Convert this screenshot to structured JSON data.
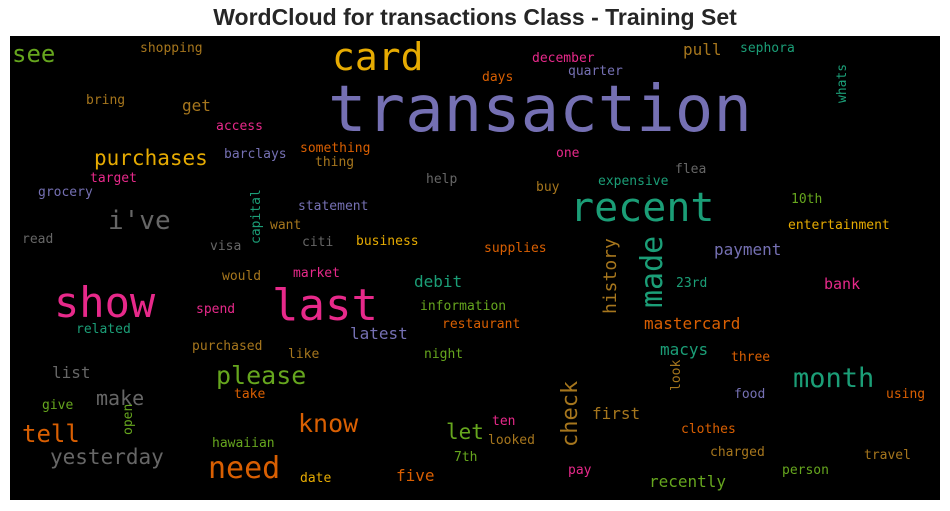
{
  "chart_data": {
    "type": "wordcloud",
    "title": "WordCloud for transactions Class - Training Set",
    "background": "#000000",
    "colormap": "Dark2",
    "words": [
      {
        "text": "transaction",
        "weight": 1.0,
        "color": "#7570b3"
      },
      {
        "text": "card",
        "weight": 0.48,
        "color": "#e6ab02"
      },
      {
        "text": "recent",
        "weight": 0.48,
        "color": "#1b9e77"
      },
      {
        "text": "last",
        "weight": 0.48,
        "color": "#e7298a"
      },
      {
        "text": "show",
        "weight": 0.48,
        "color": "#e7298a"
      },
      {
        "text": "made",
        "weight": 0.4,
        "color": "#1b9e77"
      },
      {
        "text": "i've",
        "weight": 0.3,
        "color": "#666666"
      },
      {
        "text": "month",
        "weight": 0.3,
        "color": "#1b9e77"
      },
      {
        "text": "need",
        "weight": 0.3,
        "color": "#d95f02"
      },
      {
        "text": "please",
        "weight": 0.27,
        "color": "#66a61e"
      },
      {
        "text": "know",
        "weight": 0.27,
        "color": "#d95f02"
      },
      {
        "text": "check",
        "weight": 0.27,
        "color": "#a6761d"
      },
      {
        "text": "see",
        "weight": 0.25,
        "color": "#66a61e"
      },
      {
        "text": "tell",
        "weight": 0.25,
        "color": "#d95f02"
      },
      {
        "text": "purchases",
        "weight": 0.22,
        "color": "#e6ab02"
      },
      {
        "text": "make",
        "weight": 0.22,
        "color": "#666666"
      },
      {
        "text": "yesterday",
        "weight": 0.22,
        "color": "#666666"
      },
      {
        "text": "let",
        "weight": 0.22,
        "color": "#66a61e"
      },
      {
        "text": "history",
        "weight": 0.2,
        "color": "#a6761d"
      },
      {
        "text": "mastercard",
        "weight": 0.16,
        "color": "#d95f02"
      },
      {
        "text": "macys",
        "weight": 0.16,
        "color": "#1b9e77"
      },
      {
        "text": "payment",
        "weight": 0.16,
        "color": "#7570b3"
      },
      {
        "text": "debit",
        "weight": 0.16,
        "color": "#1b9e77"
      },
      {
        "text": "latest",
        "weight": 0.16,
        "color": "#7570b3"
      },
      {
        "text": "recently",
        "weight": 0.16,
        "color": "#66a61e"
      },
      {
        "text": "first",
        "weight": 0.16,
        "color": "#a6761d"
      },
      {
        "text": "five",
        "weight": 0.16,
        "color": "#d95f02"
      },
      {
        "text": "list",
        "weight": 0.16,
        "color": "#666666"
      },
      {
        "text": "get",
        "weight": 0.16,
        "color": "#a6761d"
      },
      {
        "text": "pull",
        "weight": 0.16,
        "color": "#a6761d"
      },
      {
        "text": "bank",
        "weight": 0.15,
        "color": "#e7298a"
      },
      {
        "text": "shopping",
        "weight": 0.13,
        "color": "#a6761d"
      },
      {
        "text": "december",
        "weight": 0.13,
        "color": "#e7298a"
      },
      {
        "text": "quarter",
        "weight": 0.13,
        "color": "#7570b3"
      },
      {
        "text": "sephora",
        "weight": 0.13,
        "color": "#1b9e77"
      },
      {
        "text": "days",
        "weight": 0.13,
        "color": "#d95f02"
      },
      {
        "text": "bring",
        "weight": 0.13,
        "color": "#a6761d"
      },
      {
        "text": "whats",
        "weight": 0.13,
        "color": "#1b9e77"
      },
      {
        "text": "access",
        "weight": 0.13,
        "color": "#e7298a"
      },
      {
        "text": "something",
        "weight": 0.13,
        "color": "#d95f02"
      },
      {
        "text": "thing",
        "weight": 0.13,
        "color": "#a6761d"
      },
      {
        "text": "barclays",
        "weight": 0.13,
        "color": "#7570b3"
      },
      {
        "text": "one",
        "weight": 0.13,
        "color": "#e7298a"
      },
      {
        "text": "flea",
        "weight": 0.13,
        "color": "#666666"
      },
      {
        "text": "target",
        "weight": 0.13,
        "color": "#e7298a"
      },
      {
        "text": "help",
        "weight": 0.13,
        "color": "#666666"
      },
      {
        "text": "expensive",
        "weight": 0.13,
        "color": "#1b9e77"
      },
      {
        "text": "grocery",
        "weight": 0.13,
        "color": "#7570b3"
      },
      {
        "text": "buy",
        "weight": 0.13,
        "color": "#a6761d"
      },
      {
        "text": "10th",
        "weight": 0.13,
        "color": "#66a61e"
      },
      {
        "text": "statement",
        "weight": 0.13,
        "color": "#7570b3"
      },
      {
        "text": "capital",
        "weight": 0.13,
        "color": "#1b9e77"
      },
      {
        "text": "want",
        "weight": 0.13,
        "color": "#a6761d"
      },
      {
        "text": "entertainment",
        "weight": 0.13,
        "color": "#e6ab02"
      },
      {
        "text": "read",
        "weight": 0.13,
        "color": "#666666"
      },
      {
        "text": "visa",
        "weight": 0.13,
        "color": "#666666"
      },
      {
        "text": "citi",
        "weight": 0.13,
        "color": "#666666"
      },
      {
        "text": "business",
        "weight": 0.13,
        "color": "#e6ab02"
      },
      {
        "text": "supplies",
        "weight": 0.13,
        "color": "#d95f02"
      },
      {
        "text": "would",
        "weight": 0.13,
        "color": "#a6761d"
      },
      {
        "text": "market",
        "weight": 0.13,
        "color": "#e7298a"
      },
      {
        "text": "23rd",
        "weight": 0.13,
        "color": "#1b9e77"
      },
      {
        "text": "spend",
        "weight": 0.13,
        "color": "#e7298a"
      },
      {
        "text": "information",
        "weight": 0.13,
        "color": "#66a61e"
      },
      {
        "text": "related",
        "weight": 0.13,
        "color": "#1b9e77"
      },
      {
        "text": "restaurant",
        "weight": 0.13,
        "color": "#d95f02"
      },
      {
        "text": "purchased",
        "weight": 0.13,
        "color": "#a6761d"
      },
      {
        "text": "like",
        "weight": 0.13,
        "color": "#a6761d"
      },
      {
        "text": "night",
        "weight": 0.13,
        "color": "#66a61e"
      },
      {
        "text": "three",
        "weight": 0.13,
        "color": "#d95f02"
      },
      {
        "text": "look",
        "weight": 0.13,
        "color": "#a6761d"
      },
      {
        "text": "take",
        "weight": 0.13,
        "color": "#d95f02"
      },
      {
        "text": "food",
        "weight": 0.13,
        "color": "#7570b3"
      },
      {
        "text": "using",
        "weight": 0.13,
        "color": "#d95f02"
      },
      {
        "text": "give",
        "weight": 0.13,
        "color": "#66a61e"
      },
      {
        "text": "open",
        "weight": 0.13,
        "color": "#66a61e"
      },
      {
        "text": "ten",
        "weight": 0.13,
        "color": "#e7298a"
      },
      {
        "text": "clothes",
        "weight": 0.13,
        "color": "#d95f02"
      },
      {
        "text": "hawaiian",
        "weight": 0.13,
        "color": "#66a61e"
      },
      {
        "text": "looked",
        "weight": 0.13,
        "color": "#a6761d"
      },
      {
        "text": "7th",
        "weight": 0.13,
        "color": "#66a61e"
      },
      {
        "text": "charged",
        "weight": 0.13,
        "color": "#a6761d"
      },
      {
        "text": "travel",
        "weight": 0.13,
        "color": "#a6761d"
      },
      {
        "text": "pay",
        "weight": 0.13,
        "color": "#e7298a"
      },
      {
        "text": "person",
        "weight": 0.13,
        "color": "#66a61e"
      },
      {
        "text": "date",
        "weight": 0.13,
        "color": "#e6ab02"
      }
    ]
  }
}
